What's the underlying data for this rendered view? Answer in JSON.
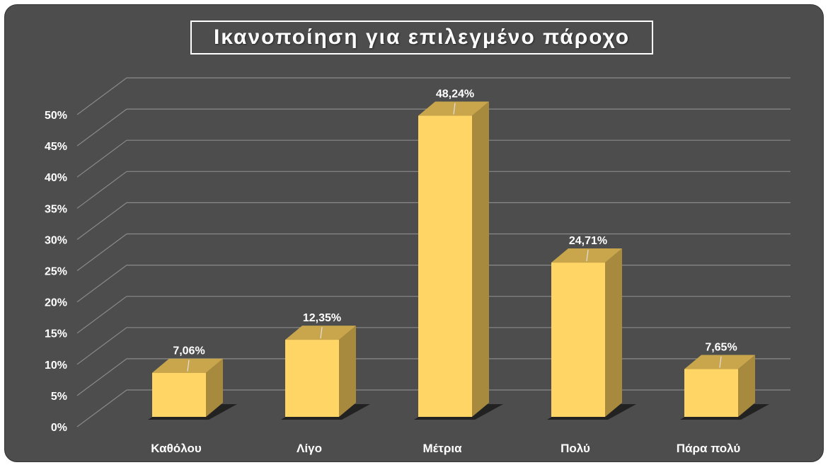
{
  "chart_data": {
    "type": "bar",
    "title": "Ικανοποίηση για επιλεγμένο πάροχο",
    "categories": [
      "Καθόλου",
      "Λίγο",
      "Μέτρια",
      "Πολύ",
      "Πάρα πολύ"
    ],
    "values": [
      7.06,
      12.35,
      48.24,
      24.71,
      7.65
    ],
    "data_labels": [
      "7,06%",
      "12,35%",
      "48,24%",
      "24,71%",
      "7,65%"
    ],
    "ylim": [
      0,
      50
    ],
    "y_ticks": [
      "0%",
      "5%",
      "10%",
      "15%",
      "20%",
      "25%",
      "30%",
      "35%",
      "40%",
      "45%",
      "50%"
    ],
    "grid": true,
    "style": "3d-column",
    "colors": {
      "background": "#4d4d4d",
      "bar_front": "#ffd666",
      "bar_top": "#c9a64b",
      "bar_side": "#a88a3e",
      "grid": "#8a8a8a",
      "text": "#ffffff"
    }
  }
}
